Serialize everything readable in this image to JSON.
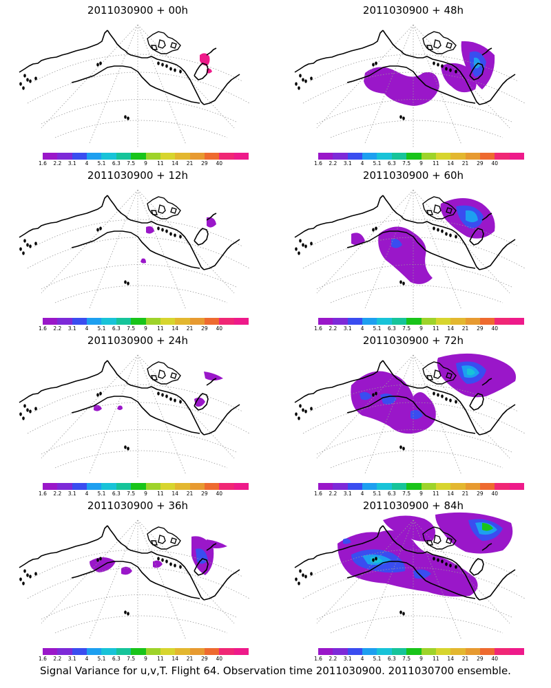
{
  "panels": [
    {
      "title": "2011030900 + 00h"
    },
    {
      "title": "2011030900 + 48h"
    },
    {
      "title": "2011030900 + 12h"
    },
    {
      "title": "2011030900 + 60h"
    },
    {
      "title": "2011030900 + 24h"
    },
    {
      "title": "2011030900 + 72h"
    },
    {
      "title": "2011030900 + 36h"
    },
    {
      "title": "2011030900 + 84h"
    }
  ],
  "colorbar": {
    "ticks": [
      "1.6",
      "2.2",
      "3.1",
      "4",
      "5.1",
      "6.3",
      "7.5",
      "9",
      "11",
      "14",
      "21",
      "29",
      "40"
    ],
    "colors": [
      "#9a17c9",
      "#7d2ad8",
      "#3a4df0",
      "#1d9ff0",
      "#18c3d8",
      "#16c49a",
      "#19c41a",
      "#9ed32a",
      "#d7d52e",
      "#e3b72f",
      "#e79a30",
      "#ee6a2f",
      "#f02775",
      "#ee1a8a"
    ]
  },
  "footer": "Signal Variance for u,v,T. Flight 64. Observation time 2011030900. 2011030700 ensemble."
}
